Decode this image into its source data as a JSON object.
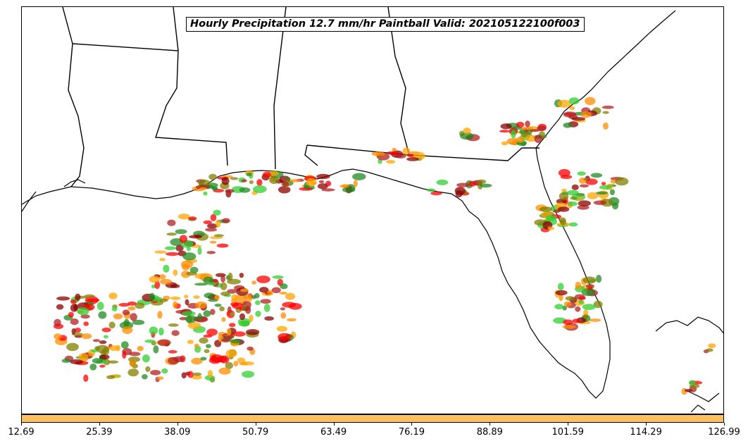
{
  "title": "Hourly Precipitation 12.7 mm/hr Paintball Valid: 202105122100f003",
  "colorbar": {
    "color": "#ffc060",
    "ticks": [
      "12.69",
      "25.39",
      "38.09",
      "50.79",
      "63.49",
      "76.19",
      "88.89",
      "101.59",
      "114.29",
      "126.99"
    ]
  },
  "member_colors": [
    "#ff0000",
    "#ff8c00",
    "#ffa500",
    "#808000",
    "#228b22",
    "#32cd32",
    "#8b0000",
    "#b22222"
  ],
  "map": {
    "region": "Gulf Coast / Florida",
    "features": [
      "coastlines",
      "state-borders"
    ]
  }
}
